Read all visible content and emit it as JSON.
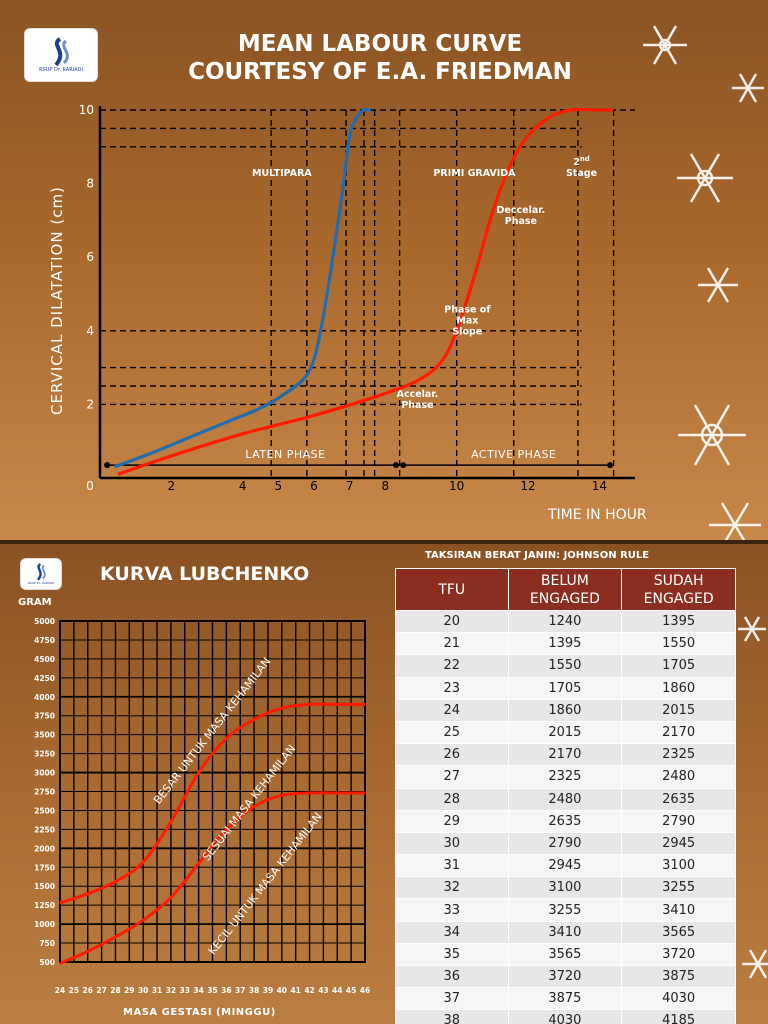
{
  "top": {
    "logo_text": "RSUP Dr. KARIADI",
    "title_line1": "MEAN LABOUR CURVE",
    "title_line2": "COURTESY OF E.A. FRIEDMAN",
    "ylabel": "CERVICAL DILATATION (cm)",
    "xlabel": "TIME IN HOUR"
  },
  "bottom": {
    "logo_text": "RSUP Dr. KARIADI",
    "title": "KURVA LUBCHENKO",
    "gram_label": "GRAM",
    "xlabel": "MASA GESTASI (MINGGU)"
  },
  "chart_data": [
    {
      "type": "line",
      "title": "MEAN LABOUR CURVE COURTESY OF E.A. FRIEDMAN",
      "xlabel": "TIME IN HOUR",
      "ylabel": "CERVICAL DILATATION (cm)",
      "x_ticks": [
        "2",
        "4",
        "5",
        "6",
        "7",
        "8",
        "10",
        "12",
        "14"
      ],
      "y_ticks": [
        "2",
        "4",
        "6",
        "8",
        "10"
      ],
      "origin_label": "0",
      "xlim": [
        0,
        15
      ],
      "ylim": [
        0,
        10
      ],
      "colors": {
        "multipara": "#1f6db0",
        "primigravida": "#ff1a00"
      },
      "series": [
        {
          "name": "MULTIPARA",
          "x": [
            0.4,
            1.5,
            2.5,
            3.5,
            4.5,
            5.2,
            5.8,
            6.1,
            6.4,
            6.8,
            7.0,
            7.2,
            7.4,
            7.6
          ],
          "y": [
            0.3,
            0.7,
            1.1,
            1.5,
            1.9,
            2.3,
            2.8,
            3.6,
            5.2,
            7.8,
            9.3,
            9.8,
            10,
            10
          ]
        },
        {
          "name": "PRIMI GRAVIDA",
          "x": [
            0.5,
            2,
            4,
            6,
            8,
            9,
            9.6,
            10,
            10.5,
            11,
            11.5,
            12,
            12.6,
            13.2,
            14,
            14.4
          ],
          "y": [
            0.1,
            0.6,
            1.2,
            1.7,
            2.3,
            2.7,
            3.2,
            4.0,
            5.5,
            7.2,
            8.5,
            9.3,
            9.8,
            10,
            10,
            10
          ]
        }
      ],
      "annotations": [
        {
          "text": "MULTIPARA",
          "x": 5.1,
          "y": 8.2
        },
        {
          "text": "PRIMI GRAVIDA",
          "x": 10.5,
          "y": 8.2
        },
        {
          "text": "2nd Stage",
          "x": 13.5,
          "y": 8.5
        },
        {
          "text": "Deccelar. Phase",
          "x": 11.8,
          "y": 7.2
        },
        {
          "text": "Phase of Max Slope",
          "x": 10.3,
          "y": 4.5
        },
        {
          "text": "Accelar. Phase",
          "x": 8.9,
          "y": 2.2
        },
        {
          "text": "LATEN PHASE",
          "x": 5.2,
          "y": 0.55
        },
        {
          "text": "ACTIVE PHASE",
          "x": 11.6,
          "y": 0.55
        }
      ],
      "phase_spans": [
        {
          "label": "LATEN PHASE",
          "from": 0.2,
          "to": 8.3
        },
        {
          "label": "ACTIVE PHASE",
          "from": 8.5,
          "to": 14.3
        }
      ],
      "h_refs": [
        2,
        2.5,
        3,
        4,
        9,
        9.5
      ],
      "v_refs": [
        4.8,
        5.8,
        6.9,
        7.4,
        7.7,
        8.4,
        10,
        11.6,
        13.4,
        14.4
      ]
    },
    {
      "type": "line",
      "title": "KURVA LUBCHENKO",
      "xlabel": "MASA GESTASI (MINGGU)",
      "ylabel": "GRAM",
      "x_ticks": [
        "24",
        "25",
        "26",
        "27",
        "28",
        "29",
        "30",
        "31",
        "32",
        "33",
        "34",
        "35",
        "36",
        "37",
        "38",
        "39",
        "40",
        "41",
        "42",
        "43",
        "44",
        "45",
        "46"
      ],
      "y_ticks": [
        "500",
        "750",
        "1000",
        "1250",
        "1500",
        "1750",
        "2000",
        "2250",
        "2500",
        "2750",
        "3000",
        "3250",
        "3500",
        "3750",
        "4000",
        "4250",
        "4500",
        "4750",
        "5000"
      ],
      "xlim": [
        24,
        46
      ],
      "ylim": [
        500,
        5000
      ],
      "grid": true,
      "color": "#ff1a00",
      "series": [
        {
          "name": "BESAR UNTUK MASA KEHAMILAN",
          "x": [
            24,
            26,
            28,
            30,
            32,
            34,
            36,
            38,
            40,
            42,
            44,
            46
          ],
          "y": [
            1280,
            1400,
            1560,
            1820,
            2350,
            3000,
            3450,
            3700,
            3850,
            3900,
            3900,
            3900
          ]
        },
        {
          "name": "SESUAI MASA KEHAMILAN",
          "x": [
            24,
            26,
            28,
            30,
            32,
            34,
            36,
            38,
            40,
            42,
            44,
            46
          ],
          "y": [
            480,
            640,
            830,
            1050,
            1350,
            1800,
            2250,
            2550,
            2700,
            2730,
            2730,
            2730
          ]
        }
      ],
      "annotations": [
        "BESAR UNTUK MASA KEHAMILAN",
        "SESUAI MASA KEHAMILAN",
        "KECIL UNTUK MASA KEHAMILAN"
      ]
    }
  ],
  "table": {
    "caption": "TAKSIRAN BERAT JANIN: JOHNSON RULE",
    "headers": [
      "TFU",
      "BELUM ENGAGED",
      "SUDAH ENGAGED"
    ],
    "rows": [
      [
        "20",
        "1240",
        "1395"
      ],
      [
        "21",
        "1395",
        "1550"
      ],
      [
        "22",
        "1550",
        "1705"
      ],
      [
        "23",
        "1705",
        "1860"
      ],
      [
        "24",
        "1860",
        "2015"
      ],
      [
        "25",
        "2015",
        "2170"
      ],
      [
        "26",
        "2170",
        "2325"
      ],
      [
        "27",
        "2325",
        "2480"
      ],
      [
        "28",
        "2480",
        "2635"
      ],
      [
        "29",
        "2635",
        "2790"
      ],
      [
        "30",
        "2790",
        "2945"
      ],
      [
        "31",
        "2945",
        "3100"
      ],
      [
        "32",
        "3100",
        "3255"
      ],
      [
        "33",
        "3255",
        "3410"
      ],
      [
        "34",
        "3410",
        "3565"
      ],
      [
        "35",
        "3565",
        "3720"
      ],
      [
        "36",
        "3720",
        "3875"
      ],
      [
        "37",
        "3875",
        "4030"
      ],
      [
        "38",
        "4030",
        "4185"
      ]
    ]
  }
}
